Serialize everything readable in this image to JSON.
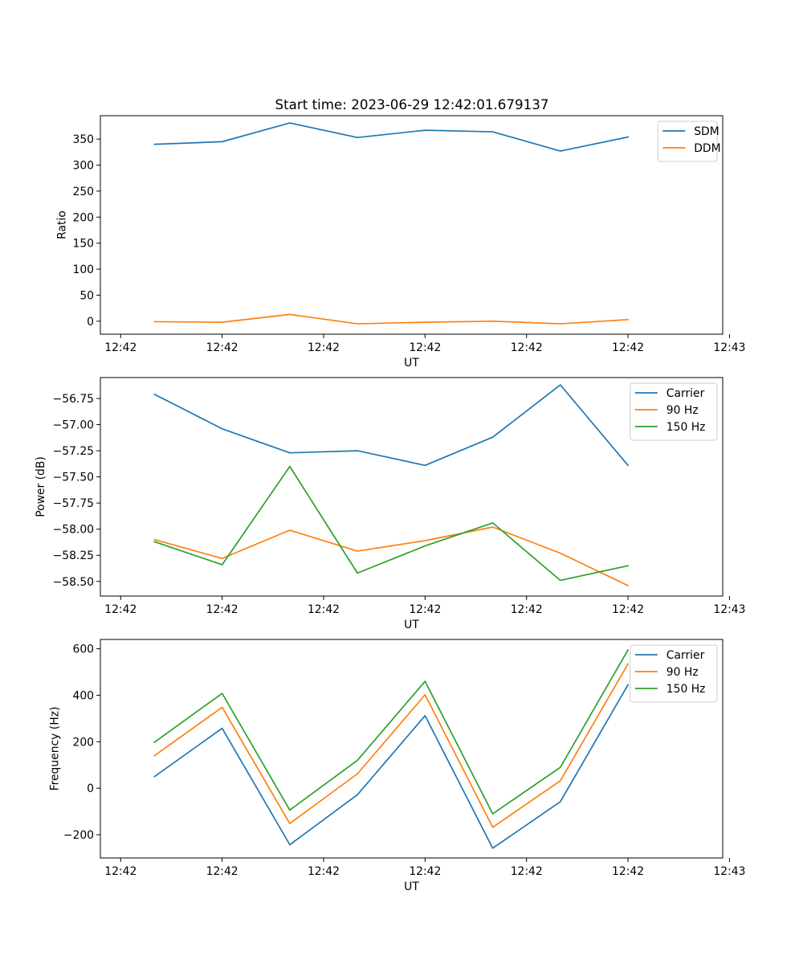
{
  "figure": {
    "title": "Start time: 2023-06-29 12:42:01.679137"
  },
  "chart_data": [
    {
      "type": "line",
      "title": "Start time: 2023-06-29 12:42:01.679137",
      "xlabel": "UT",
      "ylabel": "Ratio",
      "x": [
        1,
        2,
        3,
        4,
        5,
        6,
        7,
        8
      ],
      "xlim": [
        0.2,
        9.4
      ],
      "x_ticks": [
        0.5,
        2,
        3.5,
        5,
        6.5,
        8,
        9.5
      ],
      "x_tick_labels": [
        "12:42",
        "12:42",
        "12:42",
        "12:42",
        "12:42",
        "12:42",
        "12:43"
      ],
      "ylim": [
        -25,
        395
      ],
      "y_ticks": [
        0,
        50,
        100,
        150,
        200,
        250,
        300,
        350
      ],
      "y_tick_labels": [
        "0",
        "50",
        "100",
        "150",
        "200",
        "250",
        "300",
        "350"
      ],
      "legend_position": "upper right",
      "grid": false,
      "series": [
        {
          "name": "SDM",
          "color": "#1f77b4",
          "values": [
            340,
            345,
            381,
            353,
            367,
            364,
            327,
            354
          ]
        },
        {
          "name": "DDM",
          "color": "#ff7f0e",
          "values": [
            -1,
            -2,
            13,
            -5,
            -2,
            0,
            -5,
            3
          ]
        }
      ]
    },
    {
      "type": "line",
      "xlabel": "UT",
      "ylabel": "Power (dB)",
      "x": [
        1,
        2,
        3,
        4,
        5,
        6,
        7,
        8
      ],
      "xlim": [
        0.2,
        9.4
      ],
      "x_ticks": [
        0.5,
        2,
        3.5,
        5,
        6.5,
        8,
        9.5
      ],
      "x_tick_labels": [
        "12:42",
        "12:42",
        "12:42",
        "12:42",
        "12:42",
        "12:42",
        "12:43"
      ],
      "ylim": [
        -58.64,
        -56.55
      ],
      "y_ticks": [
        -58.5,
        -58.25,
        -58.0,
        -57.75,
        -57.5,
        -57.25,
        -57.0,
        -56.75
      ],
      "y_tick_labels": [
        "−58.50",
        "−58.25",
        "−58.00",
        "−57.75",
        "−57.50",
        "−57.25",
        "−57.00",
        "−56.75"
      ],
      "legend_position": "upper right",
      "grid": false,
      "series": [
        {
          "name": "Carrier",
          "color": "#1f77b4",
          "values": [
            -56.71,
            -57.04,
            -57.27,
            -57.25,
            -57.39,
            -57.12,
            -56.62,
            -57.39
          ]
        },
        {
          "name": "90 Hz",
          "color": "#ff7f0e",
          "values": [
            -58.1,
            -58.28,
            -58.01,
            -58.21,
            -58.11,
            -57.98,
            -58.23,
            -58.54
          ]
        },
        {
          "name": "150 Hz",
          "color": "#2ca02c",
          "values": [
            -58.12,
            -58.34,
            -57.4,
            -58.42,
            -58.16,
            -57.94,
            -58.49,
            -58.35
          ]
        }
      ]
    },
    {
      "type": "line",
      "xlabel": "UT",
      "ylabel": "Frequency (Hz)",
      "x": [
        1,
        2,
        3,
        4,
        5,
        6,
        7,
        8
      ],
      "xlim": [
        0.2,
        9.4
      ],
      "x_ticks": [
        0.5,
        2,
        3.5,
        5,
        6.5,
        8,
        9.5
      ],
      "x_tick_labels": [
        "12:42",
        "12:42",
        "12:42",
        "12:42",
        "12:42",
        "12:42",
        "12:43"
      ],
      "ylim": [
        -300,
        640
      ],
      "y_ticks": [
        -200,
        0,
        200,
        400,
        600
      ],
      "y_tick_labels": [
        "−200",
        "0",
        "200",
        "400",
        "600"
      ],
      "legend_position": "upper right",
      "grid": false,
      "series": [
        {
          "name": "Carrier",
          "color": "#1f77b4",
          "values": [
            50,
            258,
            -243,
            -28,
            312,
            -258,
            -58,
            445
          ]
        },
        {
          "name": "90 Hz",
          "color": "#ff7f0e",
          "values": [
            140,
            348,
            -152,
            62,
            402,
            -168,
            32,
            535
          ]
        },
        {
          "name": "150 Hz",
          "color": "#2ca02c",
          "values": [
            198,
            408,
            -94,
            120,
            460,
            -110,
            90,
            595
          ]
        }
      ]
    }
  ]
}
